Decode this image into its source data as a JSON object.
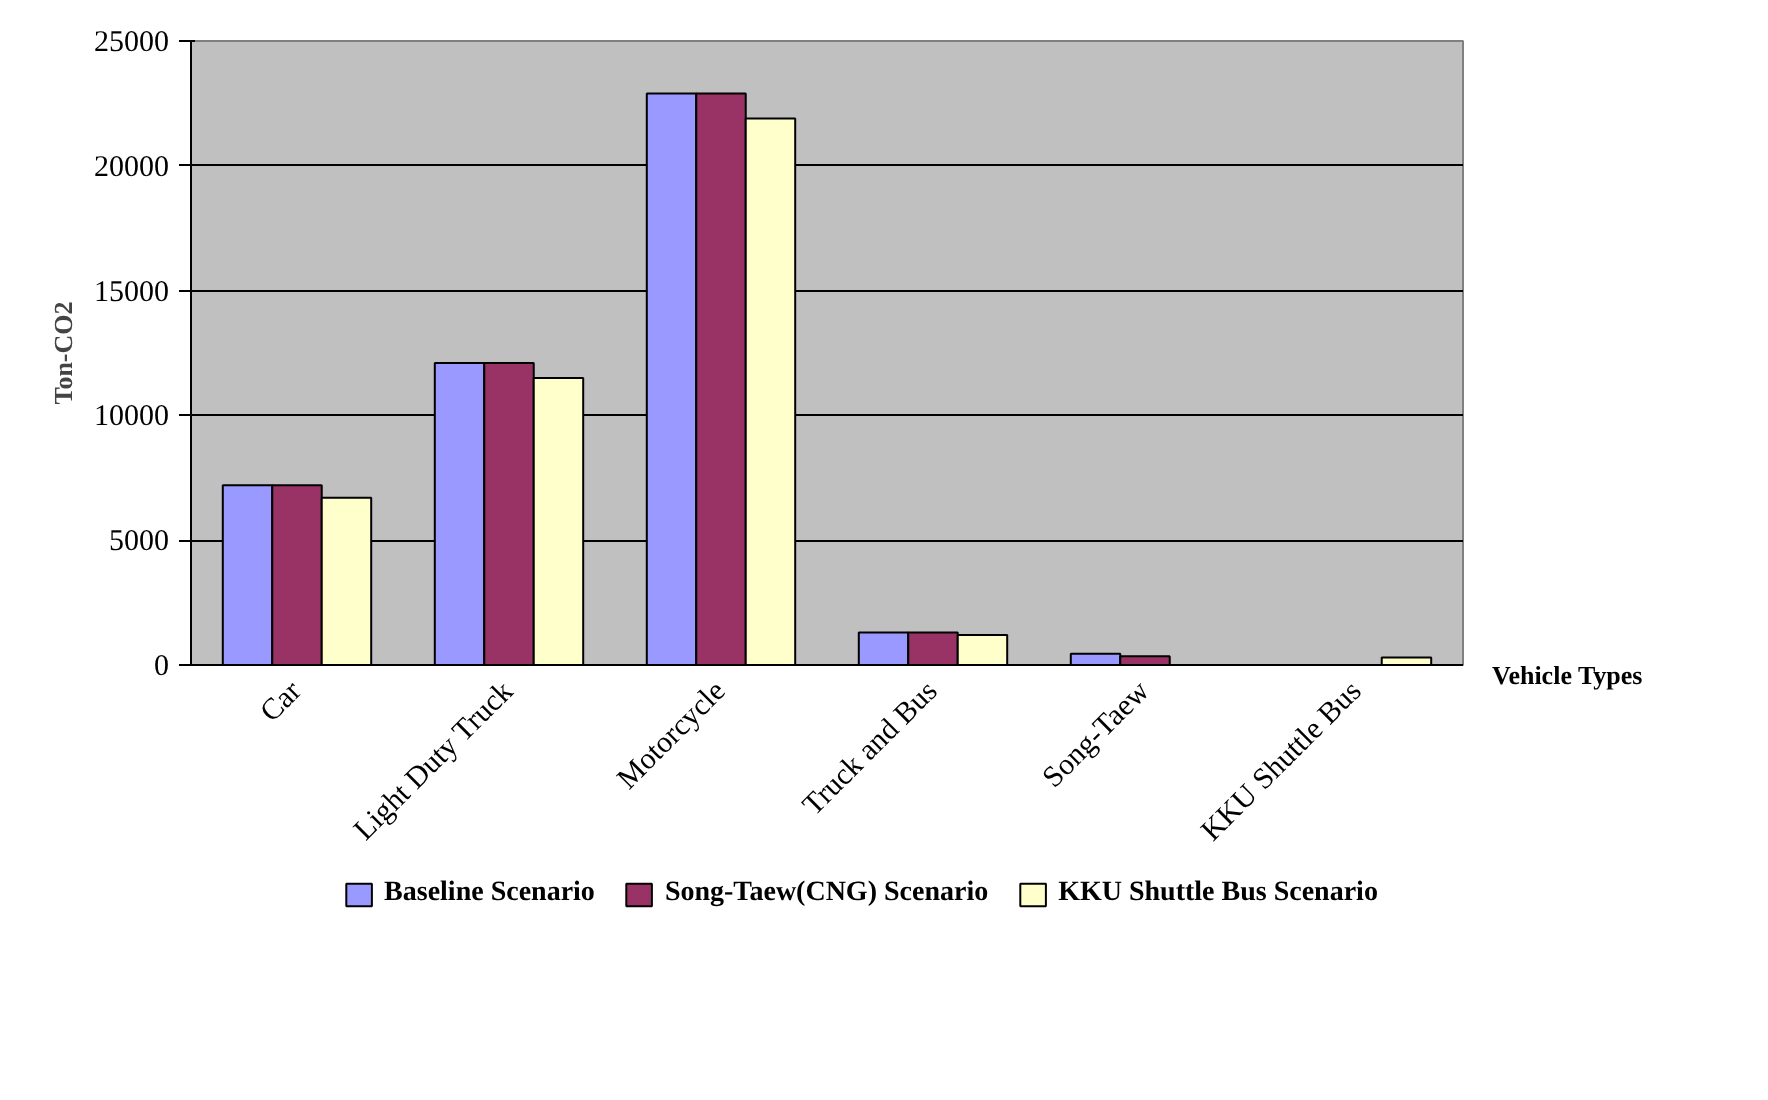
{
  "chart_data": {
    "type": "bar",
    "xlabel": "Vehicle Types",
    "ylabel": "Ton-CO2",
    "categories": [
      "Car",
      "Light Duty Truck",
      "Motorcycle",
      "Truck and Bus",
      "Song-Taew",
      "KKU Shuttle Bus"
    ],
    "series": [
      {
        "name": "Baseline Scenario",
        "color": "#9999ff",
        "values": [
          7200,
          12100,
          22900,
          1300,
          450,
          null
        ]
      },
      {
        "name": "Song-Taew(CNG) Scenario",
        "color": "#993366",
        "values": [
          7200,
          12100,
          22900,
          1300,
          350,
          null
        ]
      },
      {
        "name": "KKU Shuttle Bus Scenario",
        "color": "#ffffcc",
        "values": [
          6700,
          11500,
          21900,
          1200,
          null,
          300
        ]
      }
    ],
    "ylim": [
      0,
      25000
    ],
    "yticks": [
      0,
      5000,
      10000,
      15000,
      20000,
      25000
    ],
    "grid": "y",
    "legend": "bottom"
  }
}
